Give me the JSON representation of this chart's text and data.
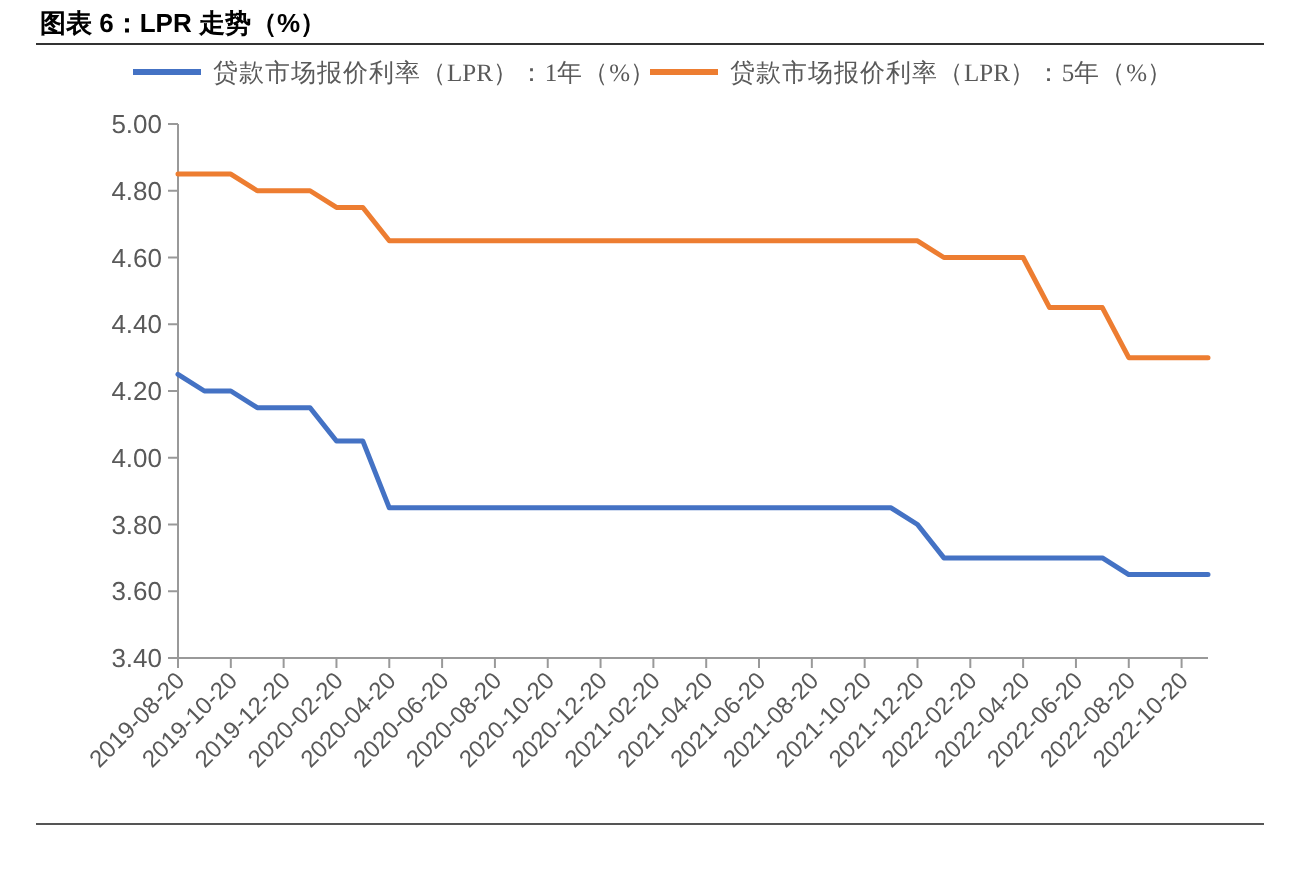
{
  "chart_data": {
    "type": "line",
    "title": "图表 6：LPR 走势（%）",
    "legend": "top",
    "categories": [
      "2019-08-20",
      null,
      "2019-10-20",
      null,
      "2019-12-20",
      null,
      "2020-02-20",
      null,
      "2020-04-20",
      null,
      "2020-06-20",
      null,
      "2020-08-20",
      null,
      "2020-10-20",
      null,
      "2020-12-20",
      null,
      "2021-02-20",
      null,
      "2021-04-20",
      null,
      "2021-06-20",
      null,
      "2021-08-20",
      null,
      "2021-10-20",
      null,
      "2021-12-20",
      null,
      "2022-02-20",
      null,
      "2022-04-20",
      null,
      "2022-06-20",
      null,
      "2022-08-20",
      null,
      "2022-10-20",
      null
    ],
    "series": [
      {
        "name": "贷款市场报价利率（LPR）：1年（%）",
        "color": "#4472c4",
        "values": [
          4.25,
          4.2,
          4.2,
          4.15,
          4.15,
          4.15,
          4.05,
          4.05,
          3.85,
          3.85,
          3.85,
          3.85,
          3.85,
          3.85,
          3.85,
          3.85,
          3.85,
          3.85,
          3.85,
          3.85,
          3.85,
          3.85,
          3.85,
          3.85,
          3.85,
          3.85,
          3.85,
          3.85,
          3.8,
          3.7,
          3.7,
          3.7,
          3.7,
          3.7,
          3.7,
          3.7,
          3.65,
          3.65,
          3.65,
          3.65
        ]
      },
      {
        "name": "贷款市场报价利率（LPR）：5年（%）",
        "color": "#ed7d31",
        "values": [
          4.85,
          4.85,
          4.85,
          4.8,
          4.8,
          4.8,
          4.75,
          4.75,
          4.65,
          4.65,
          4.65,
          4.65,
          4.65,
          4.65,
          4.65,
          4.65,
          4.65,
          4.65,
          4.65,
          4.65,
          4.65,
          4.65,
          4.65,
          4.65,
          4.65,
          4.65,
          4.65,
          4.65,
          4.65,
          4.6,
          4.6,
          4.6,
          4.6,
          4.45,
          4.45,
          4.45,
          4.3,
          4.3,
          4.3,
          4.3
        ]
      }
    ],
    "ylim": [
      3.4,
      5.0
    ],
    "yticks": [
      {
        "value": 3.4,
        "label": "3.40"
      },
      {
        "value": 3.6,
        "label": "3.60"
      },
      {
        "value": 3.8,
        "label": "3.80"
      },
      {
        "value": 4.0,
        "label": "4.00"
      },
      {
        "value": 4.2,
        "label": "4.20"
      },
      {
        "value": 4.4,
        "label": "4.40"
      },
      {
        "value": 4.6,
        "label": "4.60"
      },
      {
        "value": 4.8,
        "label": "4.80"
      },
      {
        "value": 5.0,
        "label": "5.00"
      }
    ]
  }
}
